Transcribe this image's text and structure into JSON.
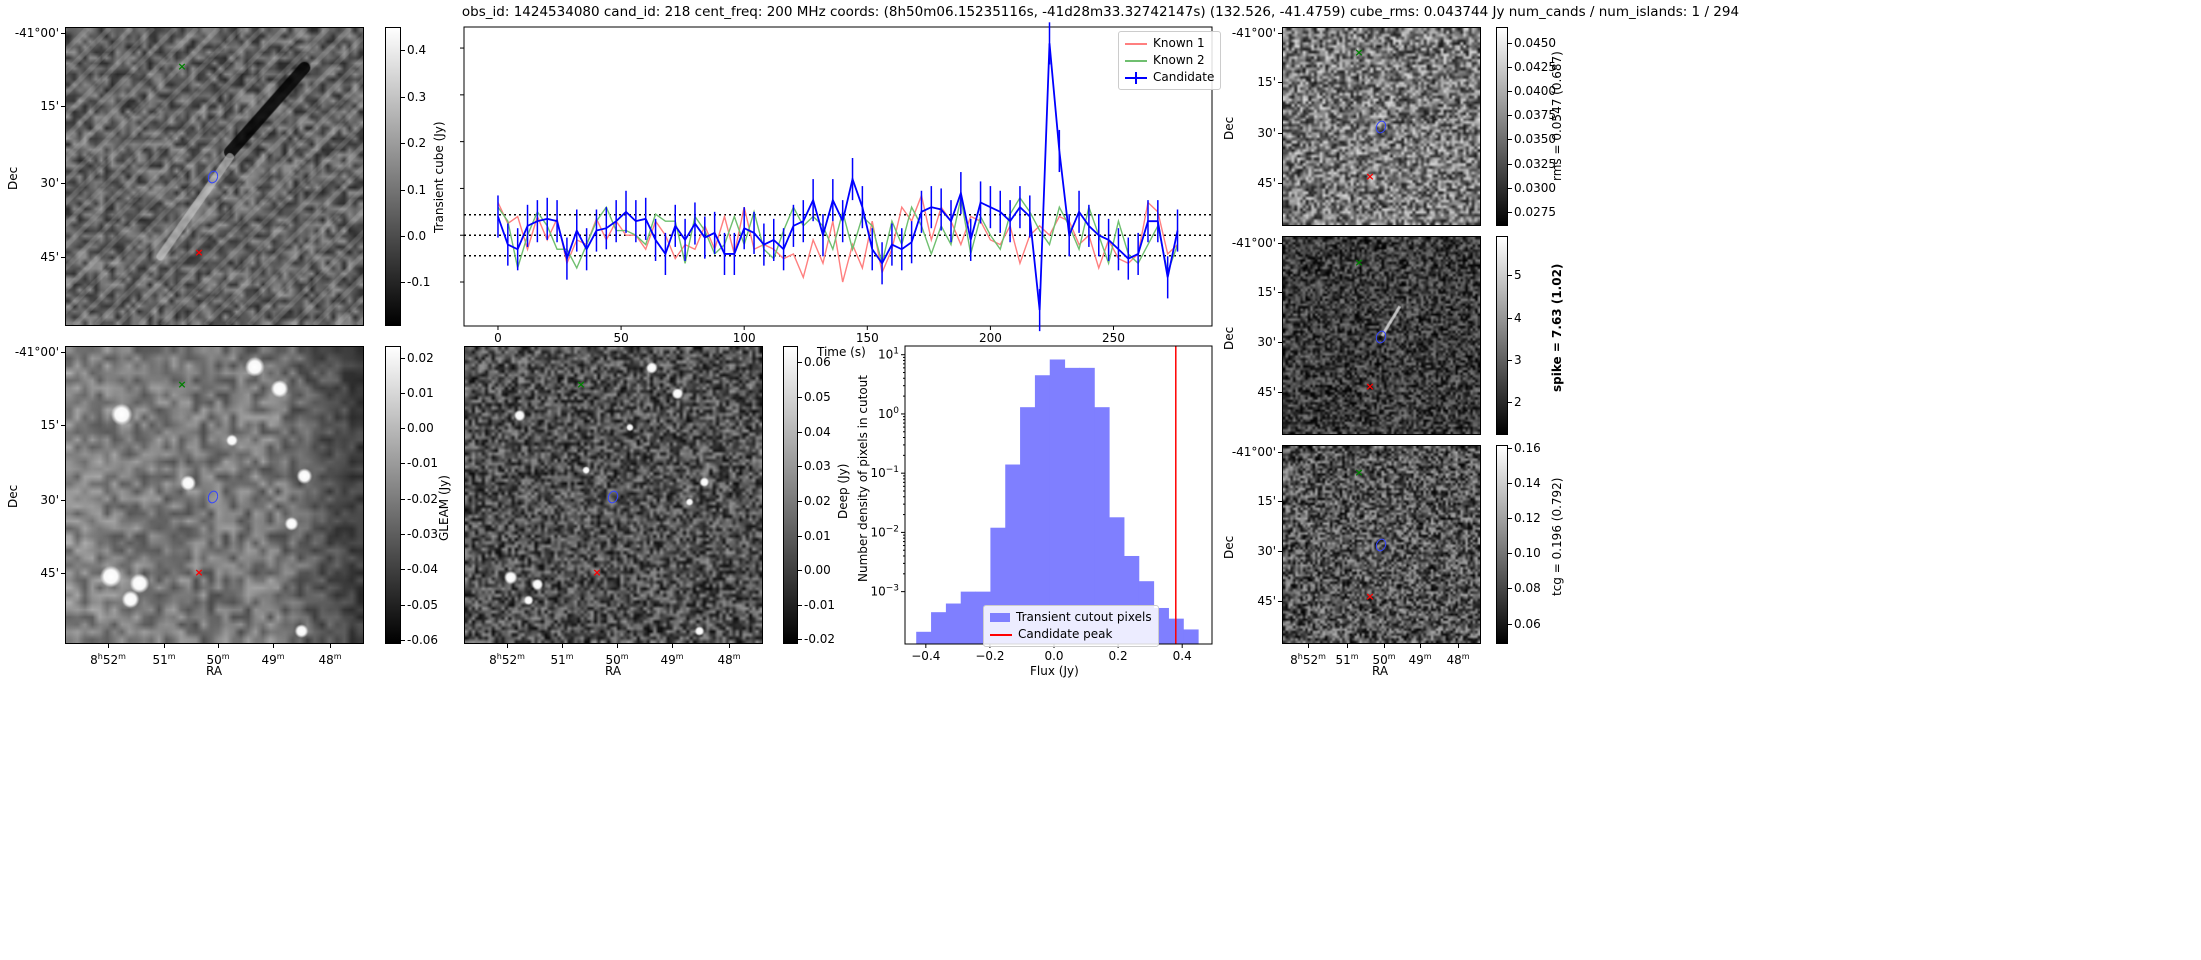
{
  "title": "obs_id: 1424534080 cand_id: 218 cent_freq: 200 MHz coords: (8h50m06.15235116s, -41d28m33.32742147s) (132.526, -41.4759) cube_rms: 0.043744 Jy num_cands / num_islands: 1 / 294",
  "axes_labels": {
    "dec": "Dec",
    "ra": "RA"
  },
  "dec_ticks": [
    "-41°00'",
    "15'",
    "30'",
    "45'"
  ],
  "ra_ticks": [
    {
      "h": "8",
      "hs": "h",
      "m": "52",
      "ms": "m"
    },
    {
      "m": "51",
      "ms": "m"
    },
    {
      "m": "50",
      "ms": "m"
    },
    {
      "m": "49",
      "ms": "m"
    },
    {
      "m": "48",
      "ms": "m"
    }
  ],
  "colorbars": {
    "transient": {
      "label": "Transient cube (Jy)",
      "vmin": -0.194,
      "vmax": 0.45,
      "ticks": [
        "0.4",
        "0.3",
        "0.2",
        "0.1",
        "0.0",
        "-0.1"
      ]
    },
    "gleam": {
      "label": "GLEAM (Jy)",
      "vmin": -0.0612,
      "vmax": 0.0233,
      "ticks": [
        "0.02",
        "0.01",
        "0.00",
        "-0.01",
        "-0.02",
        "-0.03",
        "-0.04",
        "-0.05",
        "-0.06"
      ]
    },
    "deep": {
      "label": "Deep (Jy)",
      "vmin": -0.0213,
      "vmax": 0.0647,
      "ticks": [
        "0.06",
        "0.05",
        "0.04",
        "0.03",
        "0.02",
        "0.01",
        "0.00",
        "-0.01",
        "-0.02"
      ]
    },
    "rms": {
      "label": "rms = 0.0547 (0.687)",
      "vmin": 0.026,
      "vmax": 0.0467,
      "ticks": [
        "0.0450",
        "0.0425",
        "0.0400",
        "0.0375",
        "0.0350",
        "0.0325",
        "0.0300",
        "0.0275"
      ]
    },
    "spike": {
      "label": "spike = 7.63 (1.02)",
      "vmin": 1.22,
      "vmax": 5.93,
      "ticks": [
        "5",
        "4",
        "3",
        "2"
      ]
    },
    "tcg": {
      "label": "tcg = 0.196 (0.792)",
      "vmin": 0.0484,
      "vmax": 0.1616,
      "ticks": [
        "0.16",
        "0.14",
        "0.12",
        "0.10",
        "0.08",
        "0.06"
      ]
    }
  },
  "chart_data": [
    {
      "type": "line",
      "title": "",
      "xlabel": "Time (s)",
      "ylabel": "",
      "xlim": [
        -13.8,
        290
      ],
      "ylim": [
        -0.194,
        0.445
      ],
      "xticks": [
        "0",
        "50",
        "100",
        "150",
        "200",
        "250"
      ],
      "yticks": [
        -0.1,
        0.0,
        0.1,
        0.2,
        0.3,
        0.4
      ],
      "hlines": [
        {
          "y": 0.043744,
          "style": "dotted"
        },
        {
          "y": 0.0,
          "style": "dotted"
        },
        {
          "y": -0.043744,
          "style": "dotted"
        }
      ],
      "legend": "top-right",
      "x_start": 0,
      "x_step": 4,
      "series": [
        {
          "name": "Known 1",
          "color": "#ff7f7f",
          "values": [
            0.07,
            0.025,
            0.04,
            -0.03,
            0.04,
            -0.01,
            0.035,
            -0.06,
            -0.01,
            -0.02,
            0.035,
            -0.01,
            0.03,
            0.0,
            0.0,
            -0.03,
            0.03,
            0.0,
            -0.05,
            -0.02,
            -0.03,
            0.02,
            -0.03,
            0.04,
            -0.04,
            0.06,
            -0.03,
            -0.02,
            -0.03,
            -0.05,
            -0.04,
            -0.09,
            -0.01,
            -0.06,
            0.03,
            -0.1,
            -0.02,
            -0.07,
            0.03,
            -0.08,
            -0.03,
            0.06,
            0.03,
            0.085,
            -0.01,
            0.06,
            0.03,
            -0.02,
            0.04,
            0.03,
            -0.01,
            -0.02,
            0.02,
            -0.06,
            0.0,
            0.02,
            0.0,
            0.04,
            0.03,
            -0.02,
            0.0,
            -0.07,
            -0.01,
            -0.05,
            -0.06,
            -0.04,
            0.07,
            0.05,
            -0.04,
            -0.02
          ]
        },
        {
          "name": "Known 2",
          "color": "#6fbf6f",
          "values": [
            0.06,
            0.03,
            -0.07,
            0.0,
            0.05,
            0.02,
            -0.03,
            -0.03,
            -0.07,
            -0.02,
            0.03,
            0.06,
            0.01,
            0.01,
            0.0,
            -0.02,
            0.045,
            0.03,
            0.03,
            -0.06,
            0.04,
            0.01,
            -0.04,
            -0.02,
            0.04,
            -0.02,
            0.05,
            -0.03,
            -0.05,
            0.01,
            0.06,
            0.02,
            0.04,
            0.02,
            -0.03,
            0.05,
            -0.03,
            0.04,
            0.02,
            -0.06,
            0.03,
            -0.02,
            0.06,
            0.02,
            -0.04,
            0.02,
            -0.02,
            0.08,
            -0.04,
            0.04,
            0.0,
            -0.03,
            0.045,
            0.08,
            0.05,
            0.01,
            -0.02,
            0.06,
            0.02,
            -0.03,
            0.06,
            0.0,
            -0.06,
            0.03,
            -0.04,
            -0.06,
            -0.02,
            0.02,
            -0.08,
            -0.02
          ]
        },
        {
          "name": "Candidate",
          "color": "#0000ff",
          "values": [
            0.04,
            -0.02,
            -0.03,
            0.02,
            0.03,
            0.035,
            0.03,
            -0.05,
            0.01,
            -0.03,
            0.01,
            0.015,
            0.03,
            0.05,
            0.03,
            0.035,
            -0.01,
            -0.04,
            0.02,
            -0.01,
            0.025,
            -0.005,
            0.005,
            -0.04,
            -0.04,
            0.015,
            0.005,
            -0.02,
            -0.01,
            -0.03,
            0.02,
            0.03,
            0.075,
            0.0,
            0.075,
            0.03,
            0.12,
            0.06,
            -0.03,
            -0.06,
            -0.02,
            -0.03,
            -0.015,
            0.05,
            0.06,
            0.055,
            0.03,
            0.09,
            -0.01,
            0.07,
            0.06,
            0.05,
            0.03,
            0.06,
            0.04,
            -0.16,
            0.41,
            0.18,
            0.0,
            0.05,
            0.02,
            0.0,
            -0.01,
            -0.03,
            -0.05,
            -0.04,
            0.03,
            0.03,
            -0.09,
            0.01
          ],
          "yerr": [
            0.045,
            0.045,
            0.045,
            0.045,
            0.045,
            0.045,
            0.045,
            0.045,
            0.045,
            0.045,
            0.045,
            0.045,
            0.045,
            0.045,
            0.045,
            0.045,
            0.045,
            0.045,
            0.045,
            0.045,
            0.045,
            0.045,
            0.045,
            0.045,
            0.045,
            0.045,
            0.045,
            0.045,
            0.045,
            0.045,
            0.045,
            0.045,
            0.045,
            0.045,
            0.045,
            0.045,
            0.045,
            0.045,
            0.045,
            0.045,
            0.045,
            0.045,
            0.045,
            0.045,
            0.045,
            0.045,
            0.045,
            0.045,
            0.045,
            0.045,
            0.045,
            0.045,
            0.045,
            0.045,
            0.045,
            0.045,
            0.045,
            0.045,
            0.045,
            0.045,
            0.045,
            0.045,
            0.045,
            0.045,
            0.045,
            0.045,
            0.045,
            0.045,
            0.045,
            0.045
          ]
        }
      ]
    },
    {
      "type": "bar",
      "title": "",
      "xlabel": "Flux (Jy)",
      "ylabel": "Number density of pixels in cutout",
      "yscale": "log",
      "xlim": [
        -0.465,
        0.493
      ],
      "ylog_range": [
        -3.884,
        1.147
      ],
      "xticks": [
        -0.4,
        -0.2,
        0.0,
        0.2,
        0.4
      ],
      "xtick_labels": [
        "−0.4",
        "−0.2",
        "0.0",
        "0.2",
        "0.4"
      ],
      "yticks": [
        {
          "exp": -3,
          "label": "10",
          "sup": "−3"
        },
        {
          "exp": -2,
          "label": "10",
          "sup": "−2"
        },
        {
          "exp": -1,
          "label": "10",
          "sup": "−1"
        },
        {
          "exp": 0,
          "label": "10",
          "sup": "0"
        },
        {
          "exp": 1,
          "label": "10",
          "sup": "1"
        }
      ],
      "bin_start": -0.43,
      "bin_width": 0.0463,
      "values": [
        0.00021,
        0.00045,
        0.00063,
        0.001,
        0.001,
        0.012,
        0.14,
        1.3,
        4.5,
        8.3,
        6.0,
        6.0,
        1.3,
        0.018,
        0.004,
        0.0015,
        0.00053,
        0.00035,
        0.00023
      ],
      "candidate_peak": 0.38,
      "legend": "lower-center",
      "legend_entries": [
        {
          "name": "Transient cutout pixels",
          "color": "#7f7fff"
        },
        {
          "name": "Candidate peak",
          "color": "#ff0000"
        }
      ]
    }
  ]
}
